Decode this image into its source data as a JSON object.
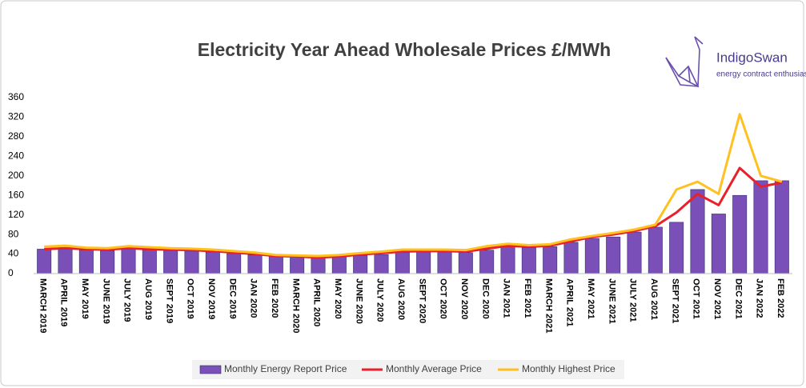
{
  "chart_data": {
    "type": "bar",
    "title": "Electricity Year Ahead Wholesale Prices £/MWh",
    "logo": {
      "name": "IndigoSwan",
      "tagline": "energy contract enthusiasts"
    },
    "categories": [
      "MARCH 2019",
      "APRIL 2019",
      "MAY 2019",
      "JUNE 2019",
      "JULY 2019",
      "AUG 2019",
      "SEPT 2019",
      "OCT 2019",
      "NOV 2019",
      "DEC 2019",
      "JAN 2020",
      "FEB 2020",
      "MARCH 2020",
      "APRIL 2020",
      "MAY 2020",
      "JUNE 2020",
      "JULY 2020",
      "AUG 2020",
      "SEPT 2020",
      "OCT 2020",
      "NOV 2020",
      "DEC 2020",
      "JAN 2021",
      "FEB 2021",
      "MARCH 2021",
      "APRIL 2021",
      "MAY 2021",
      "JUNE 2021",
      "JULY 2021",
      "AUG 2021",
      "SEPT 2021",
      "OCT 2021",
      "NOV 2021",
      "DEC 2021",
      "JAN 2022",
      "FEB 2022"
    ],
    "series": [
      {
        "name": "Monthly Energy Report Price",
        "type": "bar",
        "color": "#7a4fb8",
        "values": [
          50,
          50,
          48,
          47,
          50,
          48,
          47,
          46,
          44,
          41,
          38,
          35,
          34,
          33,
          34,
          37,
          39,
          43,
          44,
          44,
          43,
          48,
          55,
          53,
          55,
          64,
          72,
          75,
          85,
          95,
          105,
          172,
          122,
          160,
          190,
          190
        ]
      },
      {
        "name": "Monthly Average Price",
        "type": "line",
        "color": "#e8202a",
        "values": [
          50,
          52,
          50,
          49,
          52,
          50,
          49,
          48,
          46,
          43,
          40,
          36,
          35,
          33,
          35,
          39,
          42,
          45,
          46,
          46,
          45,
          51,
          57,
          55,
          57,
          66,
          75,
          80,
          87,
          97,
          125,
          163,
          140,
          216,
          178,
          186
        ]
      },
      {
        "name": "Monthly Highest Price",
        "type": "line",
        "color": "#ffc020",
        "values": [
          55,
          57,
          53,
          52,
          56,
          54,
          52,
          51,
          49,
          46,
          43,
          38,
          37,
          36,
          38,
          42,
          45,
          49,
          49,
          49,
          48,
          56,
          61,
          58,
          60,
          70,
          77,
          83,
          90,
          100,
          172,
          188,
          163,
          326,
          200,
          188
        ]
      }
    ],
    "ylim": [
      0,
      360
    ],
    "yticks": [
      0,
      40,
      80,
      120,
      160,
      200,
      240,
      280,
      320,
      360
    ],
    "grid": false,
    "legend": "bottom"
  }
}
